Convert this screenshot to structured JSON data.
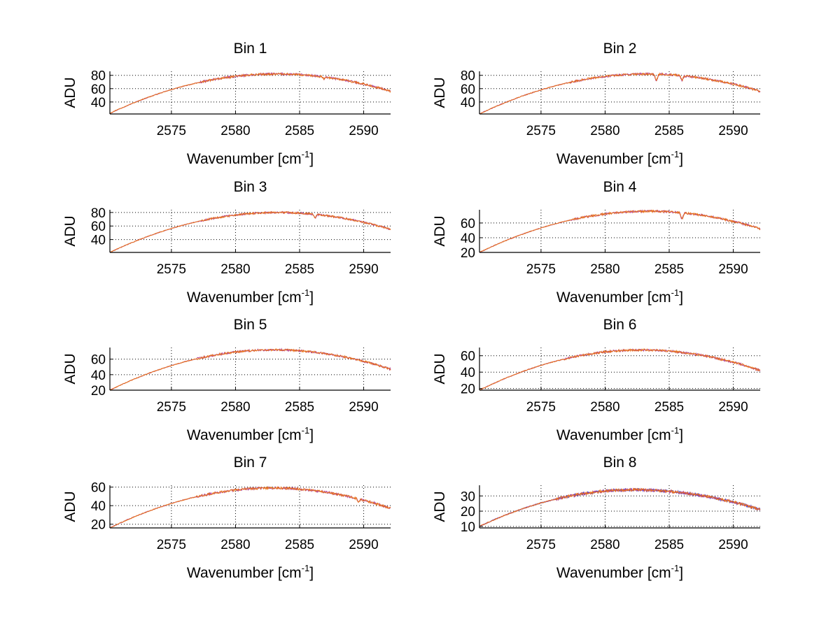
{
  "colors": {
    "series_main": "#e8731a",
    "series_second": "#3b3bd6",
    "series_third": "#b03a8e",
    "axis": "#000000",
    "grid": "#000000"
  },
  "chart_data": [
    {
      "type": "line",
      "title": "Bin 1",
      "xlabel": "Wavenumber [cm",
      "xlabel_sup": "-1",
      "xlabel_end": "]",
      "ylabel": "ADU",
      "xlim": [
        2570.2,
        2592.1
      ],
      "ylim": [
        22,
        86
      ],
      "xticks": [
        2575,
        2580,
        2585,
        2590
      ],
      "yticks": [
        40,
        60,
        80
      ],
      "profile": {
        "start": 23,
        "peak": 82,
        "peak_x": 2583.2,
        "end": 56,
        "noise": 1.6,
        "dips": [
          [
            2586.9,
            3
          ]
        ],
        "series": 2
      }
    },
    {
      "type": "line",
      "title": "Bin 2",
      "xlabel": "Wavenumber [cm",
      "xlabel_sup": "-1",
      "xlabel_end": "]",
      "ylabel": "ADU",
      "xlim": [
        2570.2,
        2592.1
      ],
      "ylim": [
        22,
        86
      ],
      "xticks": [
        2575,
        2580,
        2585,
        2590
      ],
      "yticks": [
        40,
        60,
        80
      ],
      "profile": {
        "start": 22,
        "peak": 82,
        "peak_x": 2583.2,
        "end": 56,
        "noise": 1.6,
        "dips": [
          [
            2584.0,
            9
          ],
          [
            2586.0,
            7
          ]
        ],
        "series": 2
      }
    },
    {
      "type": "line",
      "title": "Bin 3",
      "xlabel": "Wavenumber [cm",
      "xlabel_sup": "-1",
      "xlabel_end": "]",
      "ylabel": "ADU",
      "xlim": [
        2570.2,
        2592.1
      ],
      "ylim": [
        21,
        84
      ],
      "xticks": [
        2575,
        2580,
        2585,
        2590
      ],
      "yticks": [
        40,
        60,
        80
      ],
      "profile": {
        "start": 21,
        "peak": 80,
        "peak_x": 2583.3,
        "end": 55,
        "noise": 1.4,
        "dips": [
          [
            2586.2,
            5
          ]
        ],
        "series": 2
      }
    },
    {
      "type": "line",
      "title": "Bin 4",
      "xlabel": "Wavenumber [cm",
      "xlabel_sup": "-1",
      "xlabel_end": "]",
      "ylabel": "ADU",
      "xlim": [
        2570.2,
        2592.1
      ],
      "ylim": [
        20,
        78
      ],
      "xticks": [
        2575,
        2580,
        2585,
        2590
      ],
      "yticks": [
        20,
        40,
        60
      ],
      "profile": {
        "start": 20,
        "peak": 76,
        "peak_x": 2583.4,
        "end": 52,
        "noise": 1.4,
        "dips": [
          [
            2586.0,
            8
          ]
        ],
        "series": 2
      }
    },
    {
      "type": "line",
      "title": "Bin 5",
      "xlabel": "Wavenumber [cm",
      "xlabel_sup": "-1",
      "xlabel_end": "]",
      "ylabel": "ADU",
      "xlim": [
        2570.2,
        2592.1
      ],
      "ylim": [
        20,
        75
      ],
      "xticks": [
        2575,
        2580,
        2585,
        2590
      ],
      "yticks": [
        20,
        40,
        60
      ],
      "profile": {
        "start": 20,
        "peak": 72,
        "peak_x": 2583.0,
        "end": 47,
        "noise": 1.3,
        "dips": [],
        "series": 2
      }
    },
    {
      "type": "line",
      "title": "Bin 6",
      "xlabel": "Wavenumber [cm",
      "xlabel_sup": "-1",
      "xlabel_end": "]",
      "ylabel": "ADU",
      "xlim": [
        2570.2,
        2592.1
      ],
      "ylim": [
        18,
        70
      ],
      "xticks": [
        2575,
        2580,
        2585,
        2590
      ],
      "yticks": [
        20,
        40,
        60
      ],
      "profile": {
        "start": 18,
        "peak": 67,
        "peak_x": 2582.8,
        "end": 42,
        "noise": 1.3,
        "dips": [],
        "series": 2
      }
    },
    {
      "type": "line",
      "title": "Bin 7",
      "xlabel": "Wavenumber [cm",
      "xlabel_sup": "-1",
      "xlabel_end": "]",
      "ylabel": "ADU",
      "xlim": [
        2570.2,
        2592.1
      ],
      "ylim": [
        16,
        62
      ],
      "xticks": [
        2575,
        2580,
        2585,
        2590
      ],
      "yticks": [
        20,
        40,
        60
      ],
      "profile": {
        "start": 16,
        "peak": 59,
        "peak_x": 2582.9,
        "end": 37,
        "noise": 1.2,
        "dips": [
          [
            2589.6,
            3
          ]
        ],
        "series": 2
      }
    },
    {
      "type": "line",
      "title": "Bin 8",
      "xlabel": "Wavenumber [cm",
      "xlabel_sup": "-1",
      "xlabel_end": "]",
      "ylabel": "ADU",
      "xlim": [
        2570.2,
        2592.1
      ],
      "ylim": [
        9,
        37
      ],
      "xticks": [
        2575,
        2580,
        2585,
        2590
      ],
      "yticks": [
        10,
        20,
        30
      ],
      "profile": {
        "start": 10,
        "peak": 34,
        "peak_x": 2582.2,
        "end": 21,
        "noise": 0.9,
        "dips": [],
        "series": 3
      }
    }
  ]
}
